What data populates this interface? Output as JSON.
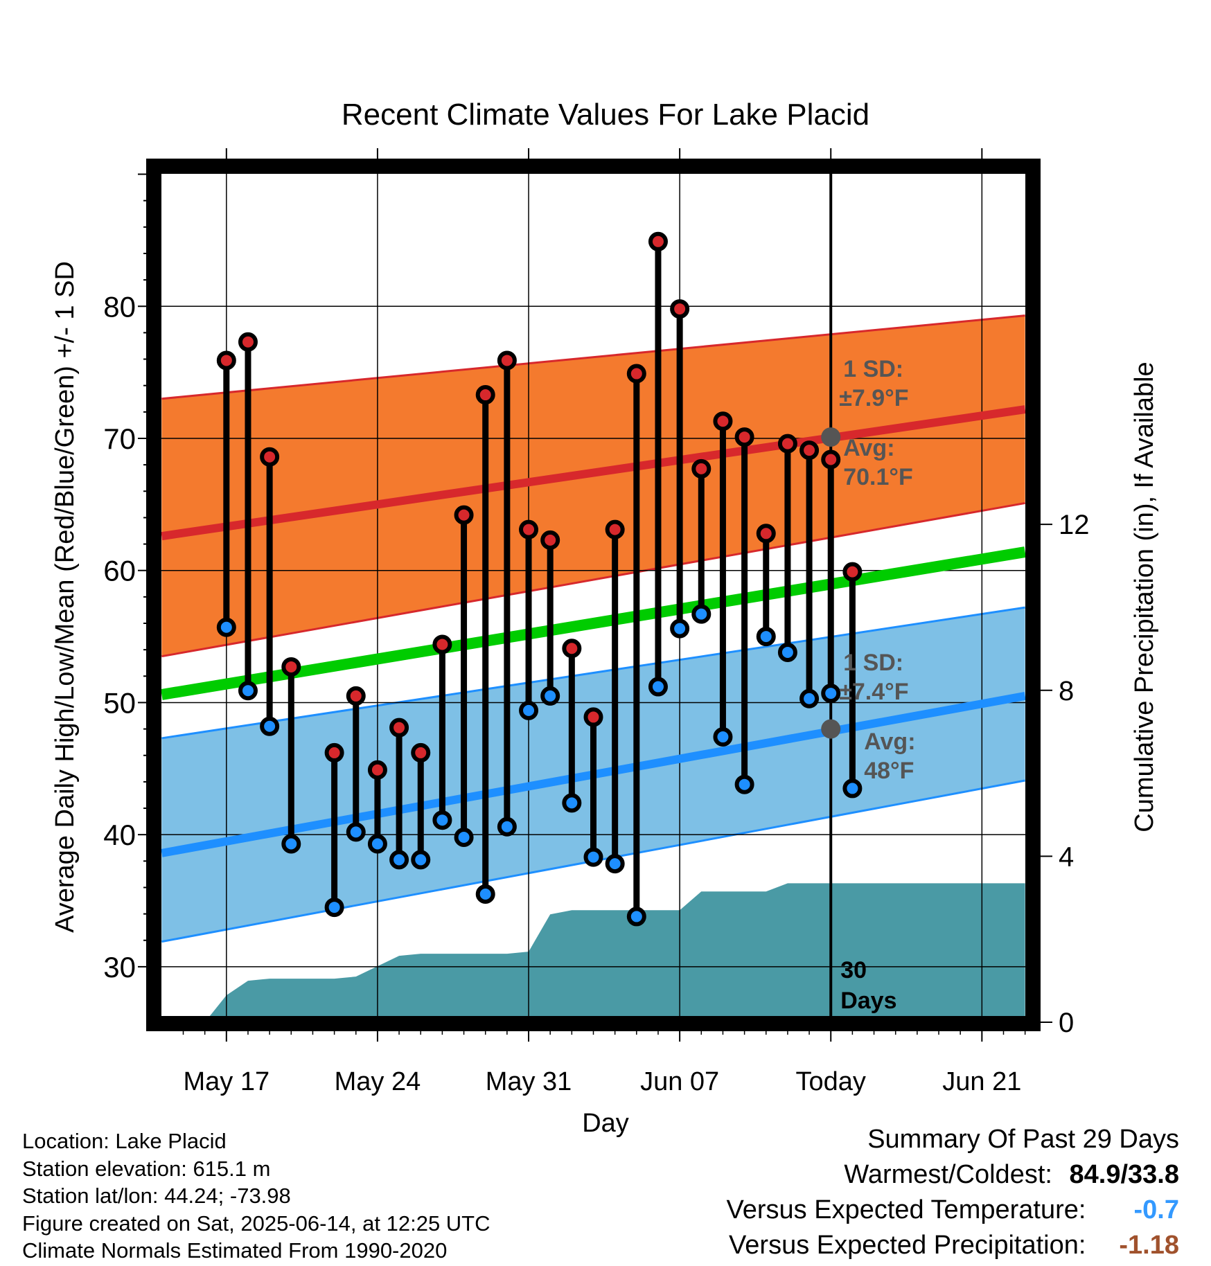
{
  "chart_data": {
    "type": "line",
    "title": "Recent Climate Values For Lake Placid",
    "xlabel": "Day",
    "ylabel": "Average Daily High/Low/Mean (Red/Blue/Green) +/- 1 SD",
    "y2label": "Cumulative Precipitation (in), If Available",
    "x_tick_labels": [
      "May 17",
      "May 24",
      "May 31",
      "Jun 07",
      "Today",
      "Jun 21"
    ],
    "today_index": 28,
    "x_range_days": [
      -3.3,
      37.3
    ],
    "ylim": [
      25.8,
      90.5
    ],
    "y_ticks": [
      30,
      40,
      50,
      60,
      70,
      80
    ],
    "y2lim": [
      0,
      20.6
    ],
    "y2_ticks": [
      0,
      4,
      8,
      12
    ],
    "grid": true,
    "daily_high": [
      75.9,
      77.3,
      68.6,
      52.7,
      null,
      46.2,
      50.5,
      44.9,
      48.1,
      46.2,
      54.4,
      64.2,
      73.3,
      75.9,
      63.1,
      62.3,
      54.1,
      48.9,
      63.1,
      74.9,
      84.9,
      79.8,
      67.7,
      71.3,
      70.1,
      62.8,
      69.6,
      69.1,
      68.4,
      59.9
    ],
    "daily_low": [
      55.7,
      50.9,
      48.2,
      39.3,
      null,
      34.5,
      40.2,
      39.3,
      38.1,
      38.1,
      41.1,
      39.8,
      35.5,
      40.6,
      49.4,
      50.5,
      42.4,
      38.3,
      37.8,
      33.8,
      51.2,
      55.6,
      56.7,
      47.4,
      43.8,
      55.0,
      53.8,
      50.3,
      50.7,
      43.5
    ],
    "normals": {
      "days": [
        -3,
        37
      ],
      "high_avg": [
        62.6,
        72.2
      ],
      "high_sd_upper": [
        73.0,
        79.3
      ],
      "high_sd_lower": [
        53.5,
        65.1
      ],
      "mean_avg": [
        50.6,
        61.4
      ],
      "low_avg": [
        38.6,
        50.5
      ],
      "low_sd_upper": [
        47.3,
        57.2
      ],
      "low_sd_lower": [
        31.9,
        44.1
      ]
    },
    "cumulative_precip": {
      "days": [
        -3,
        -1,
        0,
        1,
        2,
        3,
        4,
        5,
        6,
        7,
        8,
        9,
        10,
        11,
        12,
        13,
        14,
        15,
        16,
        17,
        18,
        19,
        20,
        21,
        22,
        23,
        24,
        25,
        26,
        27,
        28,
        37
      ],
      "values": [
        0,
        0,
        0.65,
        1.0,
        1.05,
        1.05,
        1.05,
        1.05,
        1.1,
        1.35,
        1.6,
        1.65,
        1.65,
        1.65,
        1.65,
        1.65,
        1.7,
        2.6,
        2.7,
        2.7,
        2.7,
        2.7,
        2.7,
        2.7,
        3.15,
        3.15,
        3.15,
        3.15,
        3.35,
        3.35,
        3.35,
        3.35
      ]
    },
    "colors": {
      "high_band": "#f47a2e",
      "high_line": "#d7282c",
      "low_band": "#7ec0e6",
      "low_line": "#1e8fff",
      "mean_line": "#00cc00",
      "precip": "#4a9aa5",
      "marker_label": "#555555"
    },
    "annotations": {
      "high_sd_line1": "1 SD:",
      "high_sd_line2": "±7.9°F",
      "high_avg_line1": "Avg:",
      "high_avg_line2": "70.1°F",
      "low_sd_line1": "1 SD:",
      "low_sd_line2": "±7.4°F",
      "low_avg_line1": "Avg:",
      "low_avg_line2": "48°F",
      "days_line1": "30",
      "days_line2": "Days"
    },
    "today_marker_values": {
      "high_avg": 70.1,
      "low_avg": 48
    }
  },
  "footer": {
    "location": "Location: Lake Placid",
    "elevation": "Station elevation: 615.1 m",
    "latlon": "Station lat/lon: 44.24; -73.98",
    "created": "Figure created on Sat, 2025-06-14, at 12:25 UTC",
    "normals": "Climate Normals Estimated From 1990-2020"
  },
  "summary": {
    "title": "Summary Of Past 29 Days",
    "warm_cold_label": "Warmest/Coldest:",
    "warm_cold_value": "84.9/33.8",
    "temp_label": "Versus Expected Temperature:",
    "temp_value": "-0.7",
    "temp_color": "#3399ff",
    "precip_label": "Versus Expected Precipitation:",
    "precip_value": "-1.18",
    "precip_color": "#a0522d"
  }
}
